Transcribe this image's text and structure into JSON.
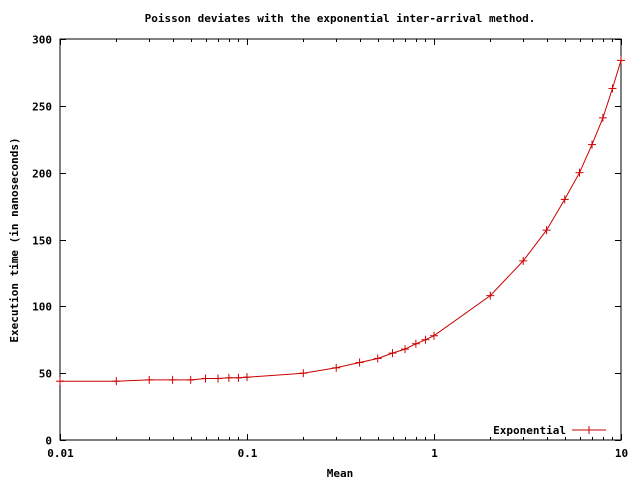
{
  "chart_data": {
    "type": "line",
    "title": "Poisson deviates with the exponential inter-arrival method.",
    "xlabel": "Mean",
    "ylabel": "Execution time (in nanoseconds)",
    "x_scale": "log",
    "xlim": [
      0.01,
      10
    ],
    "ylim": [
      0,
      300
    ],
    "x_ticks": [
      {
        "value": 0.01,
        "label": "0.01"
      },
      {
        "value": 0.1,
        "label": "0.1"
      },
      {
        "value": 1,
        "label": "1"
      },
      {
        "value": 10,
        "label": "10"
      }
    ],
    "y_ticks": [
      {
        "value": 0,
        "label": "0"
      },
      {
        "value": 50,
        "label": "50"
      },
      {
        "value": 100,
        "label": "100"
      },
      {
        "value": 150,
        "label": "150"
      },
      {
        "value": 200,
        "label": "200"
      },
      {
        "value": 250,
        "label": "250"
      },
      {
        "value": 300,
        "label": "300"
      }
    ],
    "grid": false,
    "legend_position": "bottom-right",
    "series": [
      {
        "name": "Exponential",
        "color": "#cc0000",
        "marker": "plus",
        "x": [
          0.01,
          0.02,
          0.03,
          0.04,
          0.05,
          0.06,
          0.07,
          0.08,
          0.09,
          0.1,
          0.2,
          0.3,
          0.4,
          0.5,
          0.6,
          0.7,
          0.8,
          0.9,
          1,
          2,
          3,
          4,
          5,
          6,
          7,
          8,
          9,
          10
        ],
        "y": [
          44,
          44,
          45,
          45,
          45,
          46,
          46,
          46.5,
          46.5,
          47,
          50,
          54,
          58,
          61,
          65,
          68,
          72,
          75,
          78,
          108,
          134,
          157,
          180,
          200,
          221,
          241,
          263,
          284
        ]
      }
    ]
  }
}
